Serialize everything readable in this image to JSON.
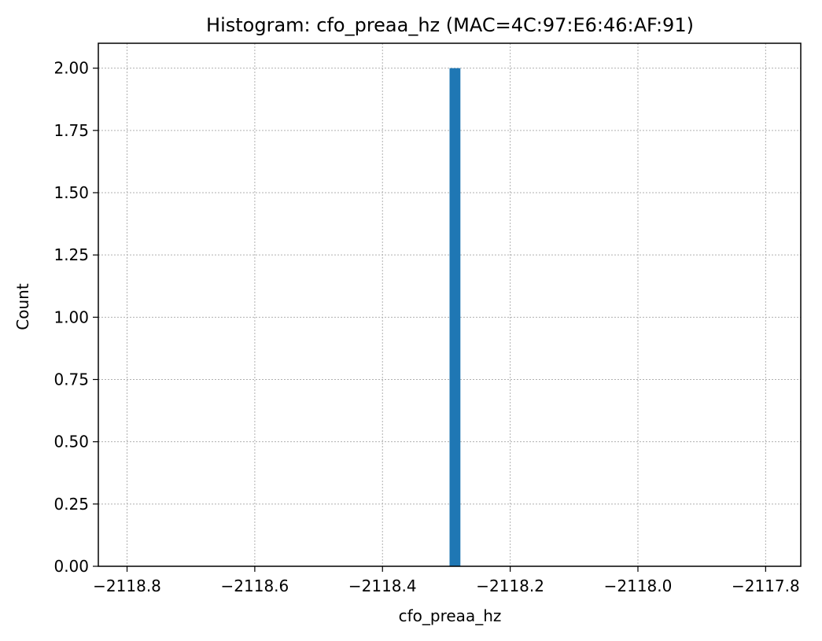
{
  "chart_data": {
    "type": "bar",
    "title": "Histogram: cfo_preaa_hz (MAC=4C:97:E6:46:AF:91)",
    "xlabel": "cfo_preaa_hz",
    "ylabel": "Count",
    "xlim": [
      -2118.845,
      -2117.745
    ],
    "ylim": [
      0,
      2.1
    ],
    "grid": true,
    "x_ticks": [
      {
        "value": -2118.8,
        "label": "−2118.8"
      },
      {
        "value": -2118.6,
        "label": "−2118.6"
      },
      {
        "value": -2118.4,
        "label": "−2118.4"
      },
      {
        "value": -2118.2,
        "label": "−2118.2"
      },
      {
        "value": -2118.0,
        "label": "−2118.0"
      },
      {
        "value": -2117.8,
        "label": "−2117.8"
      }
    ],
    "y_ticks": [
      {
        "value": 0.0,
        "label": "0.00"
      },
      {
        "value": 0.25,
        "label": "0.25"
      },
      {
        "value": 0.5,
        "label": "0.50"
      },
      {
        "value": 0.75,
        "label": "0.75"
      },
      {
        "value": 1.0,
        "label": "1.00"
      },
      {
        "value": 1.25,
        "label": "1.25"
      },
      {
        "value": 1.5,
        "label": "1.50"
      },
      {
        "value": 1.75,
        "label": "1.75"
      },
      {
        "value": 2.0,
        "label": "2.00"
      }
    ],
    "bins": [
      {
        "x0": -2118.295,
        "x1": -2118.278,
        "count": 2
      }
    ],
    "bar_color": "#1f77b4"
  }
}
